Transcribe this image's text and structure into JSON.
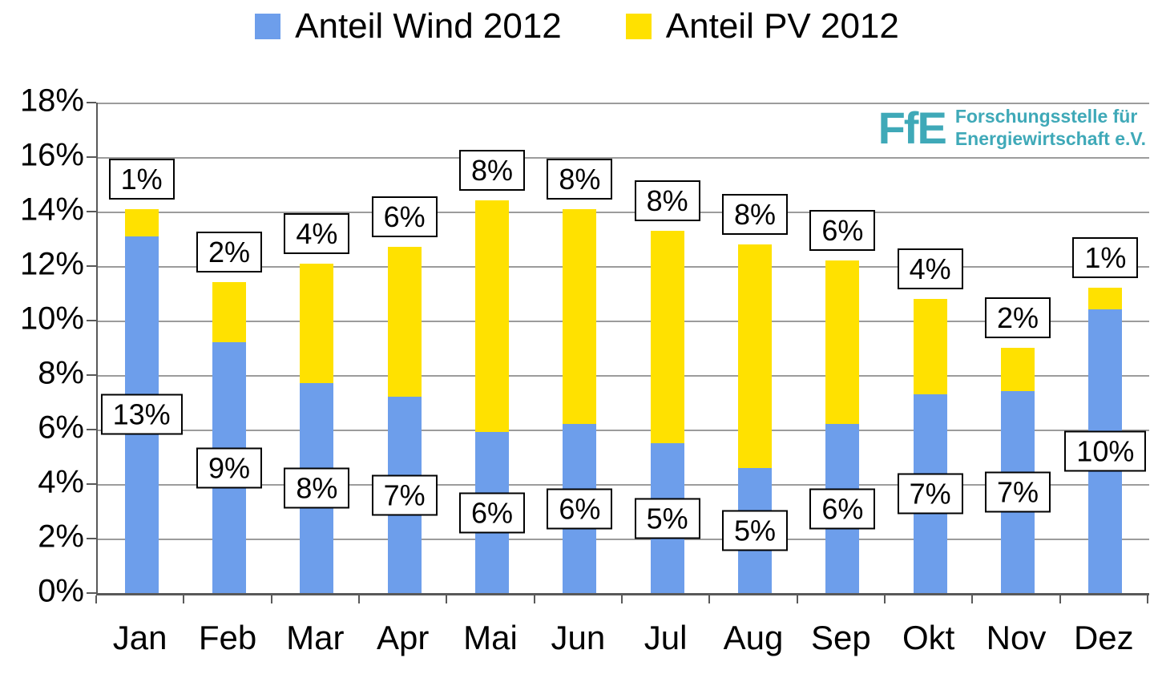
{
  "legend": [
    {
      "label": "Anteil Wind 2012",
      "color": "#6D9EEB"
    },
    {
      "label": "Anteil PV 2012",
      "color": "#FFE100"
    }
  ],
  "logo": {
    "abbr": "FfE",
    "line1": "Forschungsstelle für",
    "line2": "Energiewirtschaft e.V.",
    "color": "#3FA9B8"
  },
  "chart_data": {
    "type": "bar",
    "stacked": true,
    "title": "",
    "xlabel": "",
    "ylabel": "",
    "ylim": [
      0,
      18
    ],
    "ytick_step": 2,
    "ytick_labels": [
      "0%",
      "2%",
      "4%",
      "6%",
      "8%",
      "10%",
      "12%",
      "14%",
      "16%",
      "18%"
    ],
    "grid": true,
    "legend_position": "top",
    "categories": [
      "Jan",
      "Feb",
      "Mar",
      "Apr",
      "Mai",
      "Jun",
      "Jul",
      "Aug",
      "Sep",
      "Okt",
      "Nov",
      "Dez"
    ],
    "series": [
      {
        "name": "Anteil Wind 2012",
        "color": "#6D9EEB",
        "values": [
          13.1,
          9.2,
          7.7,
          7.2,
          5.9,
          6.2,
          5.5,
          4.6,
          6.2,
          7.3,
          7.4,
          10.4
        ],
        "labels": [
          "13%",
          "9%",
          "8%",
          "7%",
          "6%",
          "6%",
          "5%",
          "5%",
          "6%",
          "7%",
          "7%",
          "10%"
        ]
      },
      {
        "name": "Anteil PV 2012",
        "color": "#FFE100",
        "values": [
          1.0,
          2.2,
          4.4,
          5.5,
          8.5,
          7.9,
          7.8,
          8.2,
          6.0,
          3.5,
          1.6,
          0.8
        ],
        "labels": [
          "1%",
          "2%",
          "4%",
          "6%",
          "8%",
          "8%",
          "8%",
          "8%",
          "6%",
          "4%",
          "2%",
          "1%"
        ]
      }
    ]
  }
}
